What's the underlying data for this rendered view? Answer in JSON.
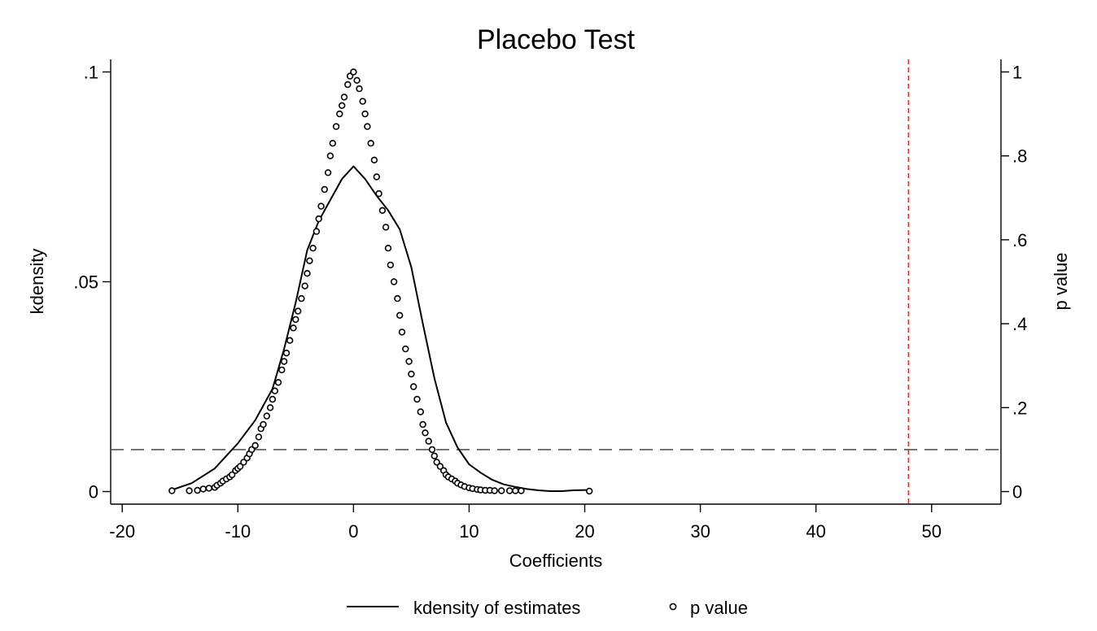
{
  "chart_data": {
    "type": "line",
    "title": "Placebo Test",
    "xlabel": "Coefficients",
    "ylabel_left": "kdensity",
    "ylabel_right": "p value",
    "xlim": [
      -21,
      56
    ],
    "ylim_left": [
      -0.003,
      0.103
    ],
    "ylim_right": [
      -0.03,
      1.03
    ],
    "xticks": [
      -20,
      -10,
      0,
      10,
      20,
      30,
      40,
      50
    ],
    "xtick_labels": [
      "-20",
      "-10",
      "0",
      "10",
      "20",
      "30",
      "40",
      "50"
    ],
    "yticks_left": [
      0,
      0.05,
      0.1
    ],
    "ytick_labels_left": [
      "0",
      ".05",
      ".1"
    ],
    "yticks_right": [
      0,
      0.2,
      0.4,
      0.6,
      0.8,
      1
    ],
    "ytick_labels_right": [
      "0",
      ".2",
      ".4",
      ".6",
      ".8",
      "1"
    ],
    "grid": false,
    "legend_position": "bottom",
    "series": [
      {
        "name": "kdensity of estimates",
        "type": "line",
        "axis": "left",
        "color": "#000000",
        "x": [
          -15.7,
          -14,
          -12,
          -10,
          -8.5,
          -7,
          -6,
          -5,
          -4,
          -3,
          -2,
          -1,
          0,
          1,
          2,
          3,
          4,
          5,
          6,
          7,
          8,
          9,
          10,
          11,
          12,
          13,
          14,
          15,
          16,
          17,
          18,
          19,
          20.4
        ],
        "y": [
          0.0004,
          0.002,
          0.0055,
          0.0115,
          0.017,
          0.0245,
          0.034,
          0.045,
          0.0575,
          0.0645,
          0.0695,
          0.0745,
          0.0775,
          0.0745,
          0.0705,
          0.067,
          0.0625,
          0.0535,
          0.04,
          0.027,
          0.0165,
          0.0105,
          0.0065,
          0.0045,
          0.0028,
          0.0017,
          0.0011,
          0.0006,
          0.0003,
          0.0001,
          0.0001,
          0.0003,
          0.0004
        ]
      },
      {
        "name": "p value",
        "type": "scatter",
        "axis": "right",
        "color": "#000000",
        "x": [
          -15.7,
          -14.2,
          -13.5,
          -13,
          -12.5,
          -12,
          -11.8,
          -11.5,
          -11.3,
          -11,
          -10.7,
          -10.5,
          -10.2,
          -10,
          -9.8,
          -9.5,
          -9.2,
          -9,
          -8.8,
          -8.5,
          -8.2,
          -8,
          -7.8,
          -7.5,
          -7.2,
          -7,
          -6.8,
          -6.5,
          -6.2,
          -6,
          -5.8,
          -5.5,
          -5.2,
          -5,
          -4.8,
          -4.5,
          -4.2,
          -4,
          -3.8,
          -3.5,
          -3.2,
          -3,
          -2.8,
          -2.5,
          -2.2,
          -2,
          -1.8,
          -1.5,
          -1.2,
          -1,
          -0.8,
          -0.5,
          -0.3,
          0,
          0.3,
          0.5,
          0.8,
          1,
          1.2,
          1.5,
          1.8,
          2,
          2.2,
          2.5,
          2.8,
          3,
          3.2,
          3.5,
          3.8,
          4,
          4.2,
          4.5,
          4.8,
          5,
          5.2,
          5.5,
          5.8,
          6,
          6.2,
          6.5,
          6.8,
          7,
          7.2,
          7.5,
          7.8,
          8,
          8.2,
          8.5,
          8.8,
          9,
          9.3,
          9.6,
          10,
          10.3,
          10.7,
          11,
          11.4,
          11.8,
          12.2,
          12.8,
          13.5,
          14,
          14.5,
          20.4
        ],
        "y": [
          0.002,
          0.002,
          0.003,
          0.006,
          0.008,
          0.01,
          0.015,
          0.02,
          0.025,
          0.03,
          0.035,
          0.04,
          0.05,
          0.055,
          0.06,
          0.07,
          0.08,
          0.09,
          0.1,
          0.11,
          0.13,
          0.15,
          0.16,
          0.18,
          0.2,
          0.22,
          0.24,
          0.26,
          0.29,
          0.31,
          0.33,
          0.36,
          0.39,
          0.41,
          0.43,
          0.46,
          0.49,
          0.52,
          0.55,
          0.58,
          0.62,
          0.65,
          0.68,
          0.72,
          0.76,
          0.8,
          0.83,
          0.87,
          0.9,
          0.92,
          0.94,
          0.97,
          0.99,
          1.0,
          0.98,
          0.96,
          0.93,
          0.9,
          0.87,
          0.83,
          0.79,
          0.75,
          0.71,
          0.67,
          0.63,
          0.58,
          0.54,
          0.5,
          0.46,
          0.42,
          0.38,
          0.34,
          0.31,
          0.28,
          0.25,
          0.22,
          0.19,
          0.16,
          0.14,
          0.12,
          0.1,
          0.085,
          0.07,
          0.06,
          0.05,
          0.04,
          0.035,
          0.03,
          0.025,
          0.02,
          0.016,
          0.012,
          0.009,
          0.007,
          0.005,
          0.004,
          0.003,
          0.003,
          0.002,
          0.002,
          0.002,
          0.002,
          0.002,
          0.001
        ]
      }
    ],
    "reference_lines": [
      {
        "orientation": "horizontal",
        "axis": "right",
        "value": 0.1,
        "style": "dashed",
        "color": "#555555"
      },
      {
        "orientation": "vertical",
        "value": 48,
        "style": "dashed",
        "color": "#e8312f"
      }
    ],
    "legend": [
      {
        "label": "kdensity of estimates",
        "marker": "line"
      },
      {
        "label": "p value",
        "marker": "hollow-circle"
      }
    ]
  }
}
